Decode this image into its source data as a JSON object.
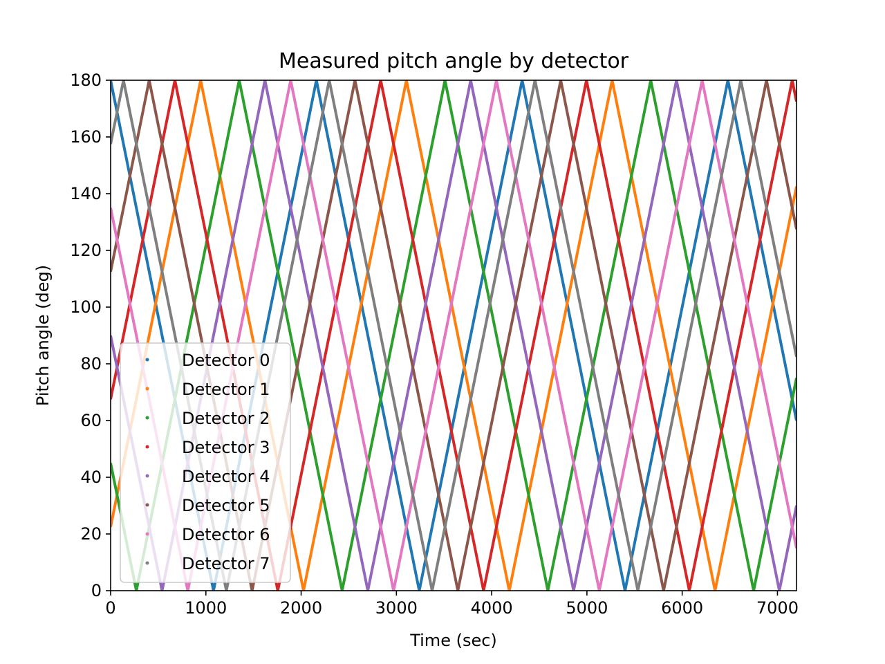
{
  "chart_data": {
    "type": "scatter",
    "title": "Measured pitch angle by detector",
    "xlabel": "Time (sec)",
    "ylabel": "Pitch angle (deg)",
    "xlim": [
      0,
      7200
    ],
    "ylim": [
      0,
      180
    ],
    "x_ticks": [
      0,
      1000,
      2000,
      3000,
      4000,
      5000,
      6000,
      7000
    ],
    "y_ticks": [
      0,
      20,
      40,
      60,
      80,
      100,
      120,
      140,
      160,
      180
    ],
    "grid": false,
    "legend_position": "lower-left",
    "sweep_period_sec": 2160,
    "series": [
      {
        "name": "Detector 0",
        "color": "#1f77b4",
        "start_angle": 180,
        "start_direction": "decreasing"
      },
      {
        "name": "Detector 1",
        "color": "#ff7f0e",
        "start_angle": 22.5,
        "start_direction": "increasing"
      },
      {
        "name": "Detector 2",
        "color": "#2ca02c",
        "start_angle": 45,
        "start_direction": "decreasing"
      },
      {
        "name": "Detector 3",
        "color": "#d62728",
        "start_angle": 67.5,
        "start_direction": "increasing"
      },
      {
        "name": "Detector 4",
        "color": "#9467bd",
        "start_angle": 90,
        "start_direction": "decreasing"
      },
      {
        "name": "Detector 5",
        "color": "#8c564b",
        "start_angle": 112.5,
        "start_direction": "increasing"
      },
      {
        "name": "Detector 6",
        "color": "#e377c2",
        "start_angle": 135,
        "start_direction": "decreasing"
      },
      {
        "name": "Detector 7",
        "color": "#7f7f7f",
        "start_angle": 157.5,
        "start_direction": "increasing"
      }
    ]
  }
}
